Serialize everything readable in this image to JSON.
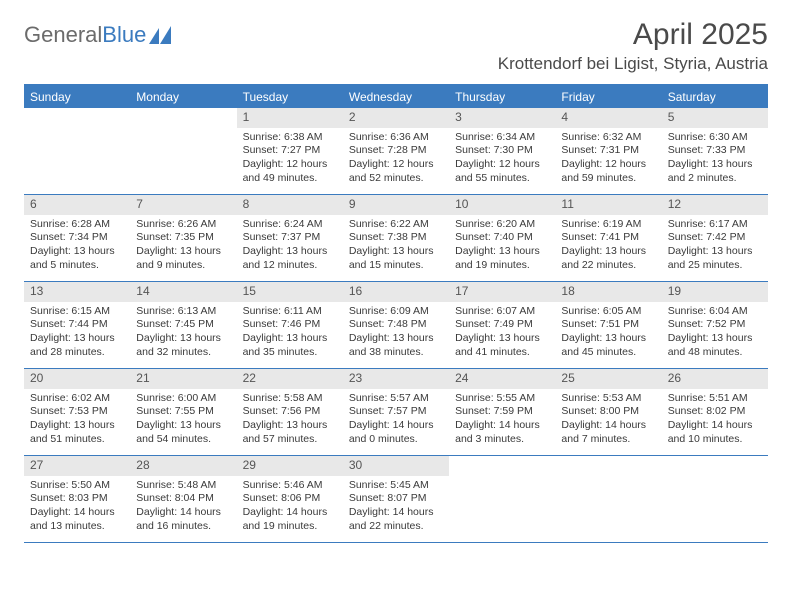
{
  "logo": {
    "text_gray": "General",
    "text_blue": "Blue"
  },
  "header": {
    "month_title": "April 2025",
    "location": "Krottendorf bei Ligist, Styria, Austria"
  },
  "colors": {
    "primary": "#3b7bbf",
    "gray_text": "#6b6b6b",
    "cell_gray": "#e8e8e8",
    "body_text": "#3a3a3a",
    "background": "#ffffff"
  },
  "weekdays": [
    "Sunday",
    "Monday",
    "Tuesday",
    "Wednesday",
    "Thursday",
    "Friday",
    "Saturday"
  ],
  "weeks": [
    [
      {
        "empty": true
      },
      {
        "empty": true
      },
      {
        "day": "1",
        "sunrise": "Sunrise: 6:38 AM",
        "sunset": "Sunset: 7:27 PM",
        "daylight1": "Daylight: 12 hours",
        "daylight2": "and 49 minutes."
      },
      {
        "day": "2",
        "sunrise": "Sunrise: 6:36 AM",
        "sunset": "Sunset: 7:28 PM",
        "daylight1": "Daylight: 12 hours",
        "daylight2": "and 52 minutes."
      },
      {
        "day": "3",
        "sunrise": "Sunrise: 6:34 AM",
        "sunset": "Sunset: 7:30 PM",
        "daylight1": "Daylight: 12 hours",
        "daylight2": "and 55 minutes."
      },
      {
        "day": "4",
        "sunrise": "Sunrise: 6:32 AM",
        "sunset": "Sunset: 7:31 PM",
        "daylight1": "Daylight: 12 hours",
        "daylight2": "and 59 minutes."
      },
      {
        "day": "5",
        "sunrise": "Sunrise: 6:30 AM",
        "sunset": "Sunset: 7:33 PM",
        "daylight1": "Daylight: 13 hours",
        "daylight2": "and 2 minutes."
      }
    ],
    [
      {
        "day": "6",
        "sunrise": "Sunrise: 6:28 AM",
        "sunset": "Sunset: 7:34 PM",
        "daylight1": "Daylight: 13 hours",
        "daylight2": "and 5 minutes."
      },
      {
        "day": "7",
        "sunrise": "Sunrise: 6:26 AM",
        "sunset": "Sunset: 7:35 PM",
        "daylight1": "Daylight: 13 hours",
        "daylight2": "and 9 minutes."
      },
      {
        "day": "8",
        "sunrise": "Sunrise: 6:24 AM",
        "sunset": "Sunset: 7:37 PM",
        "daylight1": "Daylight: 13 hours",
        "daylight2": "and 12 minutes."
      },
      {
        "day": "9",
        "sunrise": "Sunrise: 6:22 AM",
        "sunset": "Sunset: 7:38 PM",
        "daylight1": "Daylight: 13 hours",
        "daylight2": "and 15 minutes."
      },
      {
        "day": "10",
        "sunrise": "Sunrise: 6:20 AM",
        "sunset": "Sunset: 7:40 PM",
        "daylight1": "Daylight: 13 hours",
        "daylight2": "and 19 minutes."
      },
      {
        "day": "11",
        "sunrise": "Sunrise: 6:19 AM",
        "sunset": "Sunset: 7:41 PM",
        "daylight1": "Daylight: 13 hours",
        "daylight2": "and 22 minutes."
      },
      {
        "day": "12",
        "sunrise": "Sunrise: 6:17 AM",
        "sunset": "Sunset: 7:42 PM",
        "daylight1": "Daylight: 13 hours",
        "daylight2": "and 25 minutes."
      }
    ],
    [
      {
        "day": "13",
        "sunrise": "Sunrise: 6:15 AM",
        "sunset": "Sunset: 7:44 PM",
        "daylight1": "Daylight: 13 hours",
        "daylight2": "and 28 minutes."
      },
      {
        "day": "14",
        "sunrise": "Sunrise: 6:13 AM",
        "sunset": "Sunset: 7:45 PM",
        "daylight1": "Daylight: 13 hours",
        "daylight2": "and 32 minutes."
      },
      {
        "day": "15",
        "sunrise": "Sunrise: 6:11 AM",
        "sunset": "Sunset: 7:46 PM",
        "daylight1": "Daylight: 13 hours",
        "daylight2": "and 35 minutes."
      },
      {
        "day": "16",
        "sunrise": "Sunrise: 6:09 AM",
        "sunset": "Sunset: 7:48 PM",
        "daylight1": "Daylight: 13 hours",
        "daylight2": "and 38 minutes."
      },
      {
        "day": "17",
        "sunrise": "Sunrise: 6:07 AM",
        "sunset": "Sunset: 7:49 PM",
        "daylight1": "Daylight: 13 hours",
        "daylight2": "and 41 minutes."
      },
      {
        "day": "18",
        "sunrise": "Sunrise: 6:05 AM",
        "sunset": "Sunset: 7:51 PM",
        "daylight1": "Daylight: 13 hours",
        "daylight2": "and 45 minutes."
      },
      {
        "day": "19",
        "sunrise": "Sunrise: 6:04 AM",
        "sunset": "Sunset: 7:52 PM",
        "daylight1": "Daylight: 13 hours",
        "daylight2": "and 48 minutes."
      }
    ],
    [
      {
        "day": "20",
        "sunrise": "Sunrise: 6:02 AM",
        "sunset": "Sunset: 7:53 PM",
        "daylight1": "Daylight: 13 hours",
        "daylight2": "and 51 minutes."
      },
      {
        "day": "21",
        "sunrise": "Sunrise: 6:00 AM",
        "sunset": "Sunset: 7:55 PM",
        "daylight1": "Daylight: 13 hours",
        "daylight2": "and 54 minutes."
      },
      {
        "day": "22",
        "sunrise": "Sunrise: 5:58 AM",
        "sunset": "Sunset: 7:56 PM",
        "daylight1": "Daylight: 13 hours",
        "daylight2": "and 57 minutes."
      },
      {
        "day": "23",
        "sunrise": "Sunrise: 5:57 AM",
        "sunset": "Sunset: 7:57 PM",
        "daylight1": "Daylight: 14 hours",
        "daylight2": "and 0 minutes."
      },
      {
        "day": "24",
        "sunrise": "Sunrise: 5:55 AM",
        "sunset": "Sunset: 7:59 PM",
        "daylight1": "Daylight: 14 hours",
        "daylight2": "and 3 minutes."
      },
      {
        "day": "25",
        "sunrise": "Sunrise: 5:53 AM",
        "sunset": "Sunset: 8:00 PM",
        "daylight1": "Daylight: 14 hours",
        "daylight2": "and 7 minutes."
      },
      {
        "day": "26",
        "sunrise": "Sunrise: 5:51 AM",
        "sunset": "Sunset: 8:02 PM",
        "daylight1": "Daylight: 14 hours",
        "daylight2": "and 10 minutes."
      }
    ],
    [
      {
        "day": "27",
        "sunrise": "Sunrise: 5:50 AM",
        "sunset": "Sunset: 8:03 PM",
        "daylight1": "Daylight: 14 hours",
        "daylight2": "and 13 minutes."
      },
      {
        "day": "28",
        "sunrise": "Sunrise: 5:48 AM",
        "sunset": "Sunset: 8:04 PM",
        "daylight1": "Daylight: 14 hours",
        "daylight2": "and 16 minutes."
      },
      {
        "day": "29",
        "sunrise": "Sunrise: 5:46 AM",
        "sunset": "Sunset: 8:06 PM",
        "daylight1": "Daylight: 14 hours",
        "daylight2": "and 19 minutes."
      },
      {
        "day": "30",
        "sunrise": "Sunrise: 5:45 AM",
        "sunset": "Sunset: 8:07 PM",
        "daylight1": "Daylight: 14 hours",
        "daylight2": "and 22 minutes."
      },
      {
        "empty": true
      },
      {
        "empty": true
      },
      {
        "empty": true
      }
    ]
  ]
}
